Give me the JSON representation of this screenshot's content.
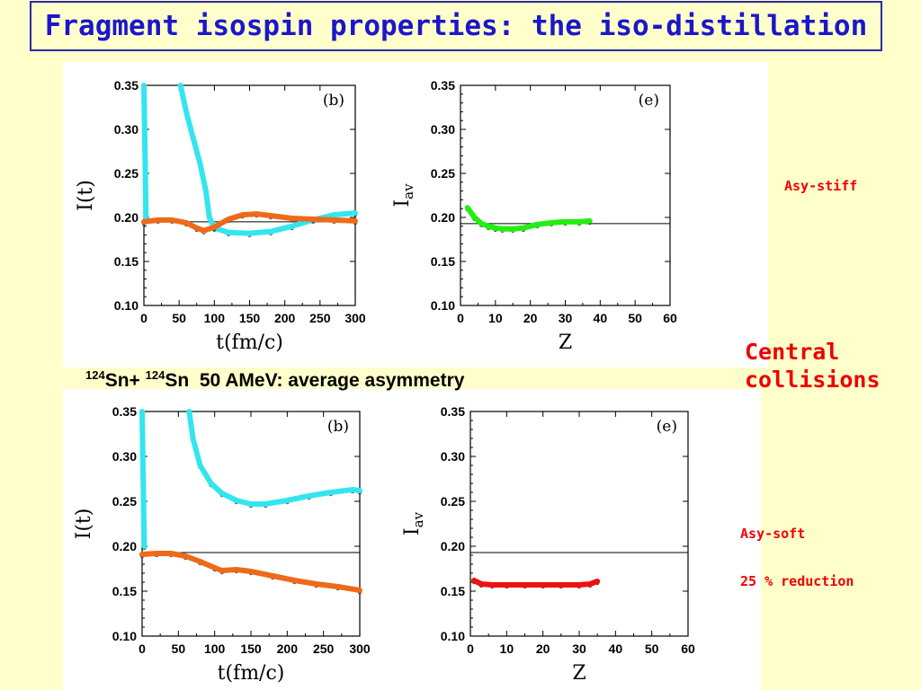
{
  "title": "Fragment isospin properties: the iso-distillation",
  "reaction": {
    "a_mass": "124",
    "a_sym": "Sn+ ",
    "b_mass": "124",
    "b_sym": "Sn",
    "rest": "  50 AMeV: average asymmetry"
  },
  "notes": {
    "asy_stiff": "Asy-stiff",
    "central_line1": "Central",
    "central_line2": "collisions",
    "asy_soft": "Asy-soft",
    "reduction": "25 % reduction"
  },
  "colors": {
    "cyan": "#33e6ee",
    "orange": "#ee6a1a",
    "green": "#22ee11",
    "red": "#ee1111",
    "title": "#1b17c8",
    "note": "#ee0000"
  },
  "chart_data": [
    {
      "id": "stiff-time",
      "type": "line",
      "panel_label": "(b)",
      "xlabel": "t(fm/c)",
      "ylabel": "I(t)",
      "xlim": [
        0,
        300
      ],
      "ylim": [
        0.1,
        0.35
      ],
      "xticks": [
        0,
        50,
        100,
        150,
        200,
        250,
        300
      ],
      "yticks": [
        "0.10",
        "0.15",
        "0.20",
        "0.25",
        "0.30",
        "0.35"
      ],
      "ref_line": 0.195,
      "series": [
        {
          "color": "cyan",
          "x": [
            0,
            1,
            2,
            3
          ],
          "y": [
            0.35,
            0.3,
            0.25,
            0.2
          ]
        },
        {
          "color": "cyan",
          "x": [
            52,
            60,
            70,
            80,
            88,
            93,
            100,
            120,
            150,
            180,
            210,
            240,
            270,
            300
          ],
          "y": [
            0.35,
            0.32,
            0.29,
            0.26,
            0.23,
            0.2,
            0.188,
            0.183,
            0.182,
            0.184,
            0.19,
            0.197,
            0.203,
            0.205
          ]
        },
        {
          "color": "orange",
          "x": [
            0,
            20,
            40,
            60,
            75,
            85,
            100,
            120,
            140,
            160,
            180,
            210,
            240,
            270,
            300
          ],
          "y": [
            0.195,
            0.197,
            0.197,
            0.194,
            0.188,
            0.185,
            0.189,
            0.198,
            0.203,
            0.204,
            0.202,
            0.199,
            0.198,
            0.197,
            0.196
          ]
        }
      ]
    },
    {
      "id": "stiff-charge",
      "type": "line",
      "panel_label": "(e)",
      "xlabel": "Z",
      "ylabel": "I",
      "ylabel_sub": "av",
      "xlim": [
        0,
        60
      ],
      "ylim": [
        0.1,
        0.35
      ],
      "xticks": [
        0,
        10,
        20,
        30,
        40,
        50,
        60
      ],
      "yticks": [
        "0.10",
        "0.15",
        "0.20",
        "0.25",
        "0.30",
        "0.35"
      ],
      "ref_line": 0.193,
      "series": [
        {
          "color": "green",
          "x": [
            2,
            4,
            6,
            8,
            10,
            12,
            15,
            18,
            22,
            26,
            30,
            34,
            37
          ],
          "y": [
            0.211,
            0.2,
            0.193,
            0.19,
            0.188,
            0.187,
            0.187,
            0.188,
            0.192,
            0.194,
            0.195,
            0.195,
            0.196
          ]
        }
      ]
    },
    {
      "id": "soft-time",
      "type": "line",
      "panel_label": "(b)",
      "xlabel": "t(fm/c)",
      "ylabel": "I(t)",
      "xlim": [
        0,
        300
      ],
      "ylim": [
        0.1,
        0.35
      ],
      "xticks": [
        0,
        50,
        100,
        150,
        200,
        250,
        300
      ],
      "yticks": [
        "0.10",
        "0.15",
        "0.20",
        "0.25",
        "0.30",
        "0.35"
      ],
      "ref_line": 0.193,
      "series": [
        {
          "color": "cyan",
          "x": [
            0,
            1,
            2,
            3
          ],
          "y": [
            0.35,
            0.3,
            0.25,
            0.2
          ]
        },
        {
          "color": "cyan",
          "x": [
            65,
            70,
            80,
            95,
            110,
            130,
            150,
            170,
            200,
            230,
            260,
            290,
            300
          ],
          "y": [
            0.35,
            0.32,
            0.29,
            0.27,
            0.259,
            0.251,
            0.247,
            0.247,
            0.251,
            0.256,
            0.26,
            0.263,
            0.262
          ]
        },
        {
          "color": "orange",
          "x": [
            0,
            20,
            40,
            60,
            80,
            100,
            110,
            130,
            150,
            180,
            210,
            240,
            270,
            300
          ],
          "y": [
            0.191,
            0.192,
            0.192,
            0.189,
            0.183,
            0.176,
            0.173,
            0.174,
            0.172,
            0.167,
            0.162,
            0.158,
            0.155,
            0.151
          ]
        }
      ]
    },
    {
      "id": "soft-charge",
      "type": "line",
      "panel_label": "(e)",
      "xlabel": "Z",
      "ylabel": "I",
      "ylabel_sub": "av",
      "xlim": [
        0,
        60
      ],
      "ylim": [
        0.1,
        0.35
      ],
      "xticks": [
        0,
        10,
        20,
        30,
        40,
        50,
        60
      ],
      "yticks": [
        "0.10",
        "0.15",
        "0.20",
        "0.25",
        "0.30",
        "0.35"
      ],
      "ref_line": 0.193,
      "series": [
        {
          "color": "red",
          "x": [
            1,
            3,
            6,
            10,
            15,
            20,
            25,
            30,
            33,
            35
          ],
          "y": [
            0.162,
            0.158,
            0.157,
            0.157,
            0.157,
            0.157,
            0.157,
            0.157,
            0.158,
            0.161
          ]
        }
      ]
    }
  ]
}
